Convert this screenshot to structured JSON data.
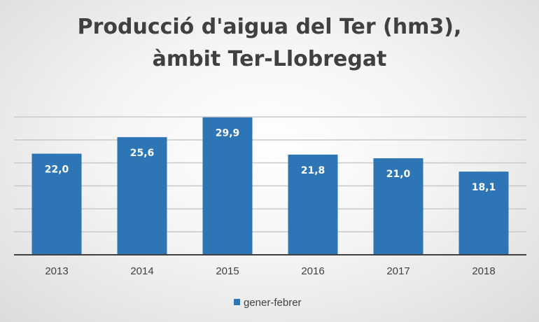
{
  "chart_data": {
    "type": "bar",
    "title": "Producció d'aigua del Ter (hm3),",
    "subtitle": "àmbit Ter-Llobregat",
    "categories": [
      "2013",
      "2014",
      "2015",
      "2016",
      "2017",
      "2018"
    ],
    "series": [
      {
        "name": "gener-febrer",
        "values": [
          22.0,
          25.6,
          29.9,
          21.8,
          21.0,
          18.1
        ],
        "labels": [
          "22,0",
          "25,6",
          "29,9",
          "21,8",
          "21,0",
          "18,1"
        ],
        "color": "#2E75B6"
      }
    ],
    "ylim": [
      0,
      30
    ],
    "ytick_step": 5,
    "grid": true,
    "legend_position": "bottom",
    "xlabel": "",
    "ylabel": ""
  }
}
